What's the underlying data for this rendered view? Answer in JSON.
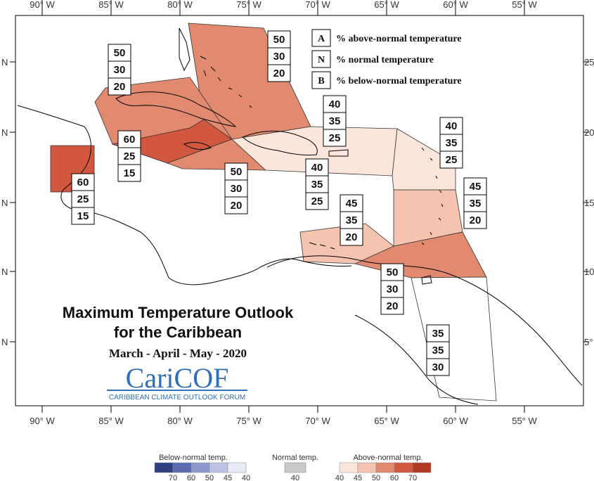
{
  "title": {
    "line1": "Maximum Temperature Outlook",
    "line2": "for the Caribbean",
    "season": "March - April - May - 2020"
  },
  "logo": {
    "name": "CariCOF",
    "subtitle": "CARIBBEAN CLIMATE OUTLOOK FORUM"
  },
  "axes": {
    "longitude_top": [
      "90° W",
      "85° W",
      "80° W",
      "75° W",
      "70° W",
      "65° W",
      "60° W",
      "55° W"
    ],
    "longitude_bottom": [
      "90° W",
      "85° W",
      "80° W",
      "75° W",
      "70° W",
      "65° W",
      "60° W",
      "55° W"
    ],
    "latitude_left": [
      "N",
      "N",
      "N",
      "N",
      "N"
    ],
    "latitude_right": [
      "25",
      "20",
      "15",
      "10",
      "5°"
    ]
  },
  "key": [
    {
      "letter": "A",
      "desc": "% above-normal temperature"
    },
    {
      "letter": "N",
      "desc": "% normal temperature"
    },
    {
      "letter": "B",
      "desc": "% below-normal temperature"
    }
  ],
  "regions": [
    {
      "id": "bahamas",
      "above": "50",
      "normal": "30",
      "below": "20",
      "color": "#e18a6f"
    },
    {
      "id": "cuba",
      "above": "50",
      "normal": "30",
      "below": "20",
      "color": "#e18a6f"
    },
    {
      "id": "cayman",
      "above": "60",
      "normal": "25",
      "below": "15",
      "color": "#d2573f"
    },
    {
      "id": "belize",
      "above": "60",
      "normal": "25",
      "below": "15",
      "color": "#d2573f"
    },
    {
      "id": "jamaica",
      "above": "50",
      "normal": "30",
      "below": "20",
      "color": "#e18a6f"
    },
    {
      "id": "hispaniola",
      "above": "40",
      "normal": "35",
      "below": "25",
      "color": "#fbe6dc"
    },
    {
      "id": "turks-caicos",
      "above": "40",
      "normal": "35",
      "below": "25",
      "color": "#fbe6dc"
    },
    {
      "id": "leeward",
      "above": "40",
      "normal": "35",
      "below": "25",
      "color": "#fbe6dc"
    },
    {
      "id": "windward",
      "above": "45",
      "normal": "35",
      "below": "20",
      "color": "#f5c4b0"
    },
    {
      "id": "abc-islands",
      "above": "45",
      "normal": "35",
      "below": "20",
      "color": "#f5c4b0"
    },
    {
      "id": "trinidad",
      "above": "50",
      "normal": "30",
      "below": "20",
      "color": "#e18a6f"
    },
    {
      "id": "guianas",
      "above": "35",
      "normal": "35",
      "below": "30",
      "color": "#ffffff"
    }
  ],
  "scale": {
    "below_label": "Below-normal temp.",
    "normal_label": "Normal temp.",
    "above_label": "Above-normal temp.",
    "below_colors": [
      "#2e3f82",
      "#5a6bb0",
      "#8c98cc",
      "#bcc3e2",
      "#e8eaf5"
    ],
    "below_ticks": [
      "70",
      "60",
      "50",
      "45",
      "40"
    ],
    "normal_color": "#c9c9c9",
    "normal_tick": "40",
    "above_colors": [
      "#fbe6dc",
      "#f5c4b0",
      "#e18a6f",
      "#d2573f",
      "#b23a22"
    ],
    "above_ticks": [
      "40",
      "45",
      "50",
      "60",
      "70"
    ]
  }
}
